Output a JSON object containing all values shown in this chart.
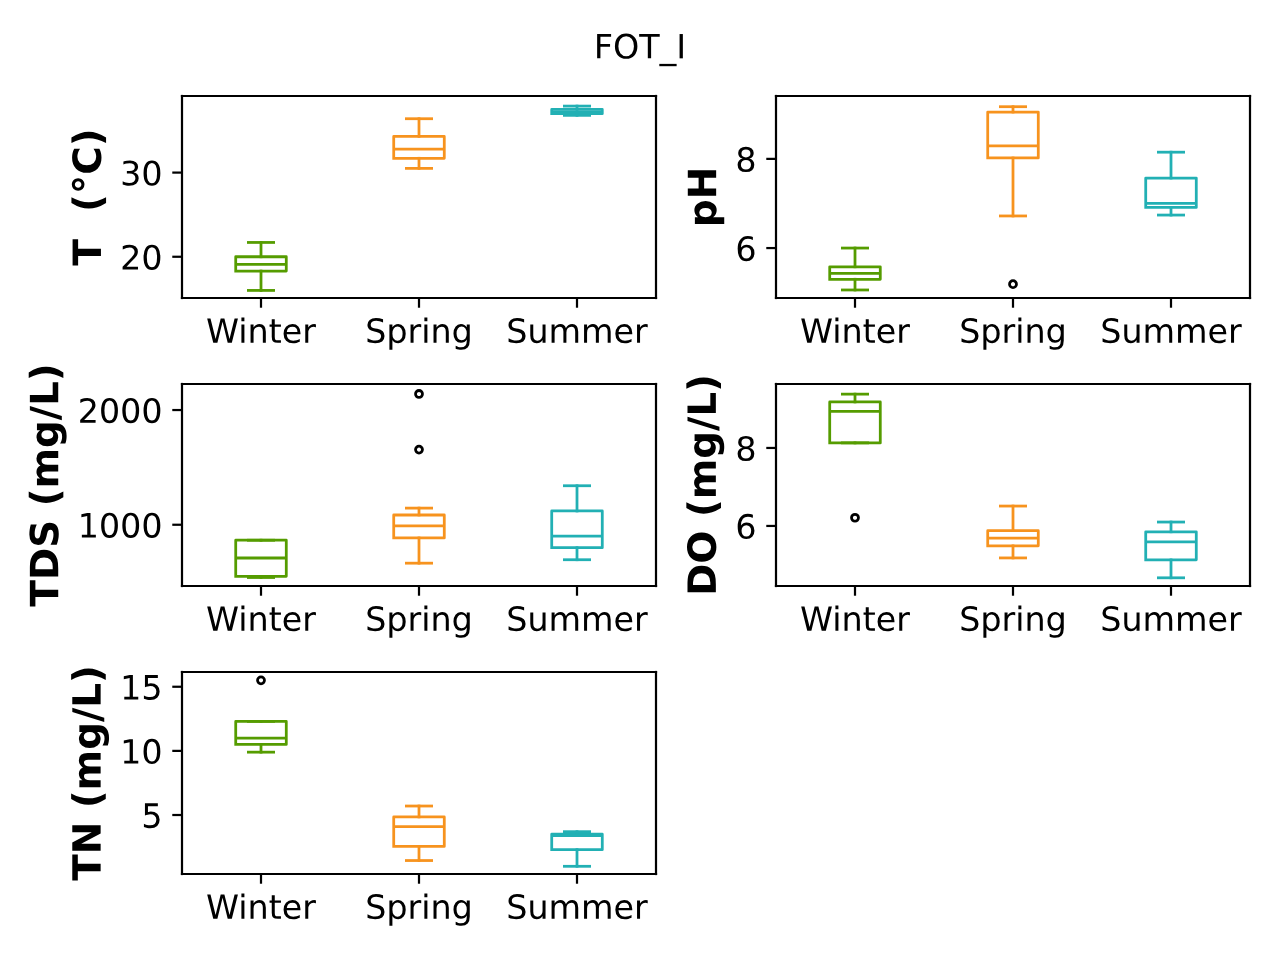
{
  "chart_data": [
    {
      "type": "box",
      "title": "FOT_I",
      "ylabel": "T  (°C)",
      "categories": [
        "Winter",
        "Spring",
        "Summer"
      ],
      "colors": [
        "#559c00",
        "#f7931e",
        "#22b0b4"
      ],
      "boxes": [
        {
          "low": 16.0,
          "q1": 18.3,
          "median": 19.1,
          "q3": 20.0,
          "high": 21.7
        },
        {
          "low": 30.5,
          "q1": 31.7,
          "median": 32.8,
          "q3": 34.3,
          "high": 36.4
        },
        {
          "low": 36.8,
          "q1": 37.0,
          "median": 37.2,
          "q3": 37.5,
          "high": 37.9
        }
      ],
      "ylim": [
        15.1,
        39.1
      ],
      "yticks": [
        20,
        30
      ]
    },
    {
      "type": "box",
      "ylabel": "pH",
      "categories": [
        "Winter",
        "Spring",
        "Summer"
      ],
      "colors": [
        "#559c00",
        "#f7931e",
        "#22b0b4"
      ],
      "boxes": [
        {
          "low": 5.06,
          "q1": 5.3,
          "median": 5.43,
          "q3": 5.58,
          "high": 6.0
        },
        {
          "low": 6.72,
          "q1": 8.02,
          "median": 8.29,
          "q3": 9.05,
          "high": 9.17,
          "outliers": [
            5.19
          ]
        },
        {
          "low": 6.74,
          "q1": 6.91,
          "median": 7.0,
          "q3": 7.57,
          "high": 8.15
        }
      ],
      "ylim": [
        4.88,
        9.41
      ],
      "yticks": [
        6,
        8
      ]
    },
    {
      "type": "box",
      "ylabel": "TDS (mg/L)",
      "categories": [
        "Winter",
        "Spring",
        "Summer"
      ],
      "colors": [
        "#559c00",
        "#f7931e",
        "#22b0b4"
      ],
      "boxes": [
        {
          "low": 540,
          "q1": 550,
          "median": 710,
          "q3": 865,
          "high": 865
        },
        {
          "low": 665,
          "q1": 885,
          "median": 990,
          "q3": 1085,
          "high": 1145,
          "outliers": [
            1655,
            2140
          ]
        },
        {
          "low": 695,
          "q1": 800,
          "median": 900,
          "q3": 1120,
          "high": 1340
        }
      ],
      "ylim": [
        466,
        2227
      ],
      "yticks": [
        1000,
        2000
      ]
    },
    {
      "type": "box",
      "ylabel": "DO (mg/L)",
      "categories": [
        "Winter",
        "Spring",
        "Summer"
      ],
      "colors": [
        "#559c00",
        "#f7931e",
        "#22b0b4"
      ],
      "boxes": [
        {
          "low": 8.13,
          "q1": 8.13,
          "median": 8.94,
          "q3": 9.18,
          "high": 9.38,
          "outliers": [
            6.21
          ]
        },
        {
          "low": 5.18,
          "q1": 5.49,
          "median": 5.69,
          "q3": 5.88,
          "high": 6.51
        },
        {
          "low": 4.67,
          "q1": 5.13,
          "median": 5.59,
          "q3": 5.85,
          "high": 6.1
        }
      ],
      "ylim": [
        4.46,
        9.64
      ],
      "yticks": [
        6,
        8
      ]
    },
    {
      "type": "box",
      "ylabel": "TN (mg/L)",
      "categories": [
        "Winter",
        "Spring",
        "Summer"
      ],
      "colors": [
        "#559c00",
        "#f7931e",
        "#22b0b4"
      ],
      "boxes": [
        {
          "low": 9.9,
          "q1": 10.5,
          "median": 11.0,
          "q3": 12.3,
          "high": 12.3,
          "outliers": [
            15.5
          ]
        },
        {
          "low": 1.45,
          "q1": 2.55,
          "median": 4.1,
          "q3": 4.85,
          "high": 5.7
        },
        {
          "low": 1.0,
          "q1": 2.3,
          "median": 3.4,
          "q3": 3.5,
          "high": 3.7
        }
      ],
      "ylim": [
        0.4,
        16.15
      ],
      "yticks": [
        5,
        10,
        15
      ]
    }
  ]
}
